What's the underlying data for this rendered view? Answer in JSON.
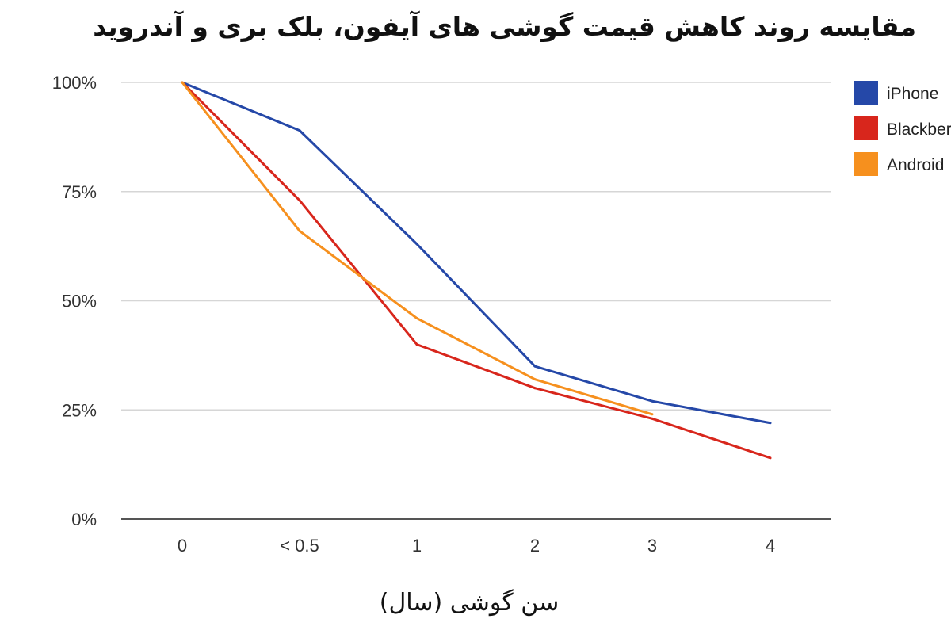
{
  "chart_data": {
    "type": "line",
    "title": "مقایسه روند کاهش قیمت گوشی های آیفون، بلک بری و آندروید",
    "xlabel": "سن گوشی (سال)",
    "ylabel": "",
    "categories": [
      "0",
      "< 0.5",
      "1",
      "2",
      "3",
      "4"
    ],
    "y_ticks": [
      "0%",
      "25%",
      "50%",
      "75%",
      "100%"
    ],
    "ylim": [
      0,
      100
    ],
    "grid": true,
    "legend_position": "right",
    "series": [
      {
        "name": "iPhone",
        "color": "#2548a8",
        "values": [
          100,
          89,
          63,
          35,
          27,
          22
        ]
      },
      {
        "name": "Blackberry",
        "color": "#d8261c",
        "values": [
          100,
          73,
          40,
          30,
          23,
          14
        ]
      },
      {
        "name": "Android",
        "color": "#f6901e",
        "values": [
          100,
          66,
          46,
          32,
          24,
          null
        ]
      }
    ]
  }
}
